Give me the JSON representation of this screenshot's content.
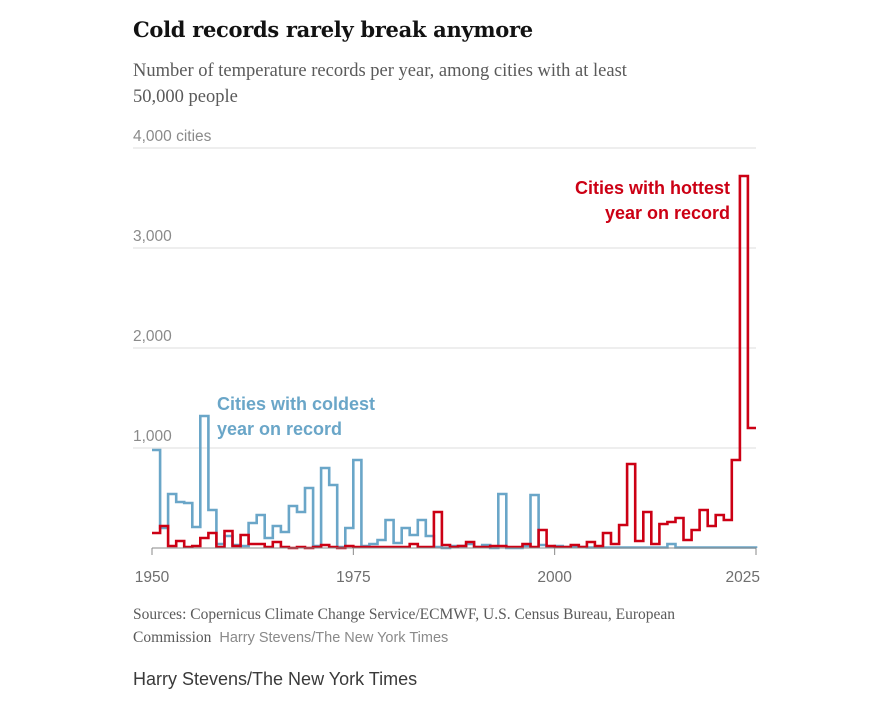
{
  "title": "Cold records rarely break anymore",
  "subtitle": "Number of temperature records per year, among cities with at least 50,000 people",
  "sources": "Sources: Copernicus Climate Change Service/ECMWF, U.S. Census Bureau, European Commission",
  "graphic_credit": "Harry Stevens/The New York Times",
  "footer_credit": "Harry Stevens/The New York Times",
  "colors": {
    "cold": "#6aa6c8",
    "hot": "#cc0014",
    "grid": "#dddddd",
    "axis": "#888888"
  },
  "chart_data": {
    "type": "line",
    "step": true,
    "title": "Cold records rarely break anymore",
    "xlim": [
      1950,
      2025
    ],
    "ylim": [
      0,
      4000
    ],
    "x_ticks": [
      {
        "value": 1950,
        "label": "1950"
      },
      {
        "value": 1975,
        "label": "1975"
      },
      {
        "value": 2000,
        "label": "2000"
      },
      {
        "value": 2025,
        "label": "2025"
      }
    ],
    "y_ticks": [
      {
        "value": 1000,
        "label": "1,000"
      },
      {
        "value": 2000,
        "label": "2,000"
      },
      {
        "value": 3000,
        "label": "3,000"
      },
      {
        "value": 4000,
        "label": "4,000 cities"
      }
    ],
    "x": [
      1950,
      1951,
      1952,
      1953,
      1954,
      1955,
      1956,
      1957,
      1958,
      1959,
      1960,
      1961,
      1962,
      1963,
      1964,
      1965,
      1966,
      1967,
      1968,
      1969,
      1970,
      1971,
      1972,
      1973,
      1974,
      1975,
      1976,
      1977,
      1978,
      1979,
      1980,
      1981,
      1982,
      1983,
      1984,
      1985,
      1986,
      1987,
      1988,
      1989,
      1990,
      1991,
      1992,
      1993,
      1994,
      1995,
      1996,
      1997,
      1998,
      1999,
      2000,
      2001,
      2002,
      2003,
      2004,
      2005,
      2006,
      2007,
      2008,
      2009,
      2010,
      2011,
      2012,
      2013,
      2014,
      2015,
      2016,
      2017,
      2018,
      2019,
      2020,
      2021,
      2022,
      2023,
      2024,
      2025
    ],
    "series": [
      {
        "name": "Cities with coldest year on record",
        "label_lines": [
          "Cities with coldest",
          "year on record"
        ],
        "color": "#6aa6c8",
        "values": [
          980,
          200,
          540,
          460,
          450,
          210,
          1320,
          380,
          40,
          120,
          30,
          20,
          250,
          330,
          100,
          220,
          160,
          420,
          360,
          600,
          20,
          800,
          630,
          10,
          200,
          880,
          20,
          40,
          80,
          280,
          50,
          200,
          130,
          280,
          120,
          10,
          0,
          20,
          20,
          40,
          10,
          30,
          0,
          540,
          0,
          0,
          20,
          530,
          30,
          10,
          20,
          10,
          10,
          10,
          5,
          5,
          5,
          5,
          5,
          5,
          5,
          5,
          5,
          5,
          40,
          5,
          5,
          5,
          5,
          5,
          5,
          5,
          5,
          5,
          5,
          0
        ]
      },
      {
        "name": "Cities with hottest year on record",
        "label_lines": [
          "Cities with hottest",
          "year on record"
        ],
        "color": "#cc0014",
        "values": [
          150,
          220,
          20,
          70,
          10,
          20,
          100,
          150,
          10,
          170,
          20,
          130,
          40,
          40,
          10,
          60,
          10,
          0,
          10,
          0,
          10,
          30,
          10,
          0,
          20,
          10,
          10,
          10,
          10,
          10,
          10,
          10,
          40,
          10,
          10,
          360,
          30,
          10,
          20,
          60,
          10,
          10,
          20,
          20,
          10,
          10,
          40,
          10,
          180,
          20,
          10,
          10,
          30,
          10,
          60,
          20,
          150,
          40,
          230,
          840,
          70,
          360,
          40,
          240,
          260,
          300,
          80,
          180,
          380,
          220,
          330,
          280,
          880,
          3720,
          1200,
          1200
        ]
      }
    ]
  }
}
